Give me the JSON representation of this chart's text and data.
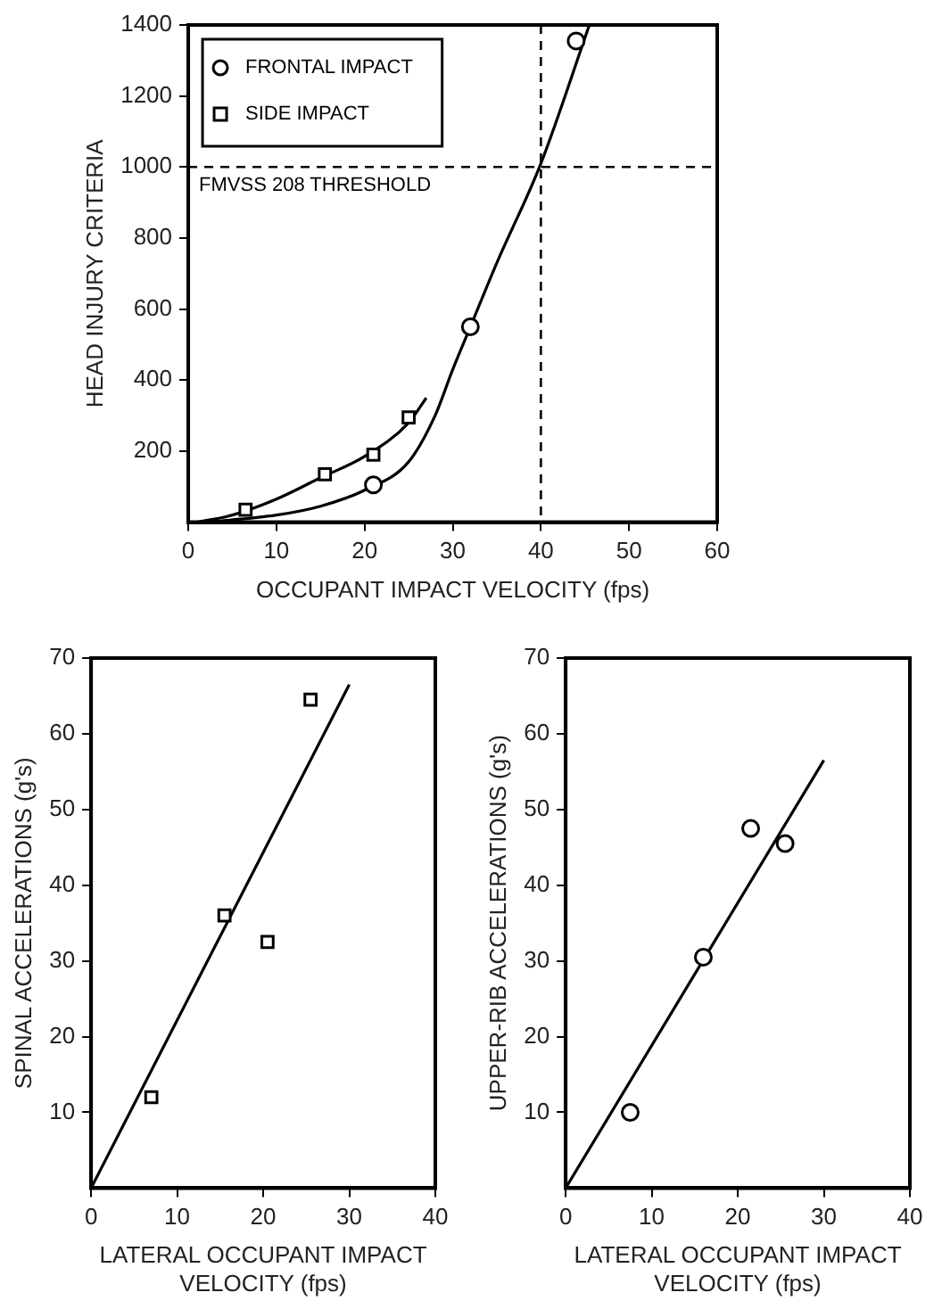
{
  "chart_data": [
    {
      "type": "scatter",
      "xlabel": "OCCUPANT IMPACT VELOCITY (fps)",
      "ylabel": "HEAD INJURY CRITERIA",
      "xlim": [
        0,
        60
      ],
      "ylim": [
        0,
        1400
      ],
      "xticks": [
        0,
        10,
        20,
        30,
        40,
        50,
        60
      ],
      "yticks": [
        200,
        400,
        600,
        800,
        1000,
        1200,
        1400
      ],
      "grid": false,
      "legend": "top left",
      "ref_lines": [
        {
          "axis": "y",
          "value": 1000,
          "label": "FMVSS 208 THRESHOLD",
          "line_style": "dashed",
          "color": "#000000"
        },
        {
          "axis": "x",
          "value": 40,
          "line_style": "dashed",
          "color": "#000000"
        }
      ],
      "series": [
        {
          "name": "FRONTAL IMPACT",
          "type": "scatter",
          "marker": "circle",
          "color": "#000000",
          "x": [
            21,
            32,
            44
          ],
          "values": [
            105,
            550,
            1355
          ]
        },
        {
          "name": "SIDE IMPACT",
          "type": "scatter",
          "marker": "square",
          "color": "#000000",
          "x": [
            6.5,
            15.5,
            21,
            25
          ],
          "values": [
            35,
            135,
            190,
            295
          ]
        },
        {
          "type": "line",
          "marker": "none",
          "color": "#000000",
          "x": [
            2,
            10,
            15,
            20,
            25,
            28,
            30,
            32,
            35,
            40,
            45.5
          ],
          "values": [
            0,
            20,
            45,
            90,
            170,
            300,
            430,
            550,
            730,
            1010,
            1400
          ]
        },
        {
          "type": "line",
          "marker": "none",
          "color": "#000000",
          "x": [
            1,
            5,
            10,
            15,
            20,
            25,
            27
          ],
          "values": [
            0,
            20,
            65,
            125,
            185,
            280,
            350
          ]
        }
      ]
    },
    {
      "type": "scatter",
      "xlabel": "LATERAL OCCUPANT IMPACT\nVELOCITY (fps)",
      "ylabel": "SPINAL ACCELERATIONS (g's)",
      "xlim": [
        0,
        40
      ],
      "ylim": [
        0,
        70
      ],
      "xticks": [
        0,
        10,
        20,
        30,
        40
      ],
      "yticks": [
        10,
        20,
        30,
        40,
        50,
        60,
        70
      ],
      "grid": false,
      "series": [
        {
          "type": "scatter",
          "marker": "square",
          "color": "#000000",
          "x": [
            7,
            15.5,
            20.5,
            25.5
          ],
          "values": [
            12,
            36,
            32.5,
            64.5
          ]
        },
        {
          "type": "line",
          "marker": "none",
          "color": "#000000",
          "x": [
            0,
            30
          ],
          "values": [
            0,
            66.5
          ]
        }
      ]
    },
    {
      "type": "scatter",
      "xlabel": "LATERAL OCCUPANT IMPACT\nVELOCITY (fps)",
      "ylabel": "UPPER-RIB ACCELERATIONS (g's)",
      "xlim": [
        0,
        40
      ],
      "ylim": [
        0,
        70
      ],
      "xticks": [
        0,
        10,
        20,
        30,
        40
      ],
      "yticks": [
        10,
        20,
        30,
        40,
        50,
        60,
        70
      ],
      "grid": false,
      "series": [
        {
          "type": "scatter",
          "marker": "circle",
          "color": "#000000",
          "x": [
            7.5,
            16,
            21.5,
            25.5
          ],
          "values": [
            10,
            30.5,
            47.5,
            45.5
          ]
        },
        {
          "type": "line",
          "marker": "none",
          "color": "#000000",
          "x": [
            0,
            30
          ],
          "values": [
            0,
            56.5
          ]
        }
      ]
    }
  ]
}
